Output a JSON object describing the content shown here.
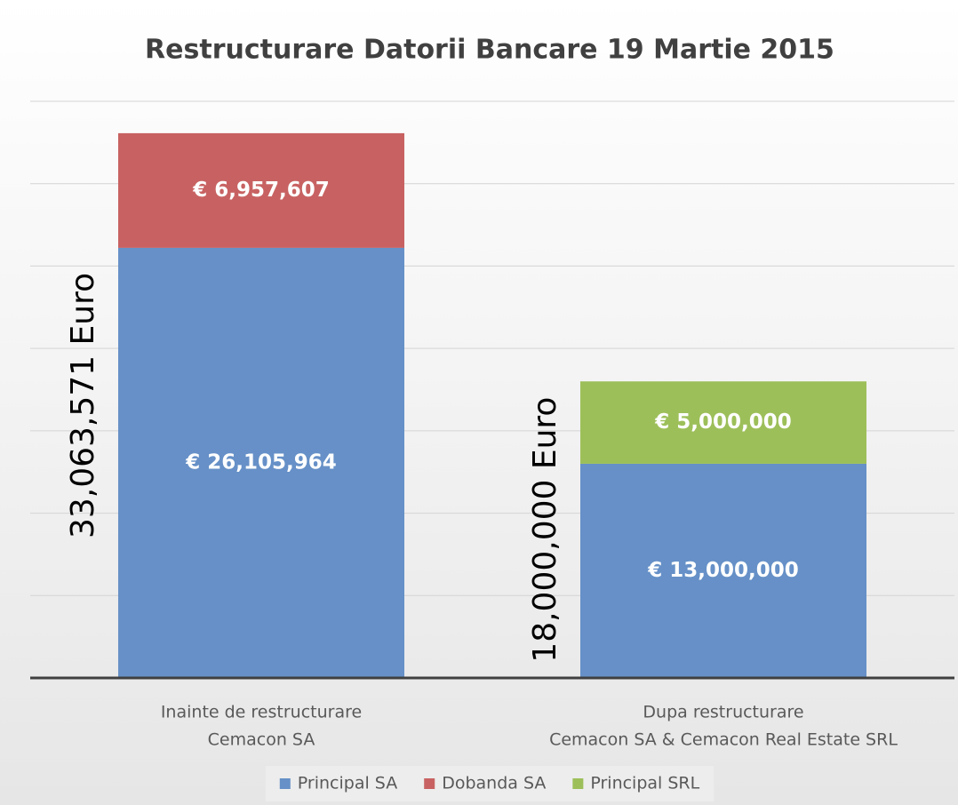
{
  "chart_data": {
    "type": "stacked_bar",
    "title": "Restructurare Datorii Bancare 19 Martie 2015",
    "categories": [
      [
        "Inainte de restructurare",
        "Cemacon SA"
      ],
      [
        "Dupa restructurare",
        "Cemacon SA & Cemacon Real Estate SRL"
      ]
    ],
    "series": [
      {
        "name": "Principal SA",
        "color": "#6690c7",
        "values": [
          26105964,
          13000000
        ],
        "value_labels": [
          "€ 26,105,964",
          "€ 13,000,000"
        ]
      },
      {
        "name": "Dobanda SA",
        "color": "#c86262",
        "values": [
          6957607,
          null
        ],
        "value_labels": [
          "€ 6,957,607",
          null
        ]
      },
      {
        "name": "Principal SRL",
        "color": "#9dbf5a",
        "values": [
          null,
          5000000
        ],
        "value_labels": [
          null,
          "€ 5,000,000"
        ]
      }
    ],
    "annotations": [
      "33,063,571 Euro",
      "18,000,000 Euro"
    ],
    "ylim": [
      0,
      35000000
    ],
    "yticks": [
      0,
      5000000,
      10000000,
      15000000,
      20000000,
      25000000,
      30000000,
      35000000
    ],
    "grid": true,
    "legend": "bottom"
  }
}
